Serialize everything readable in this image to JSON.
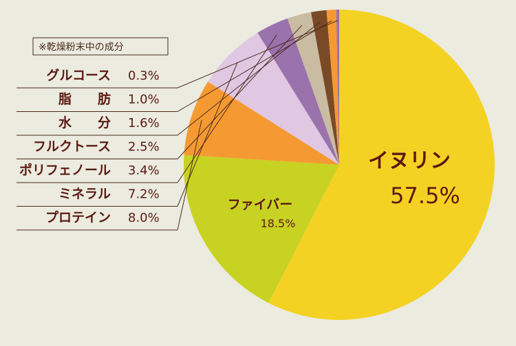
{
  "chart_data": {
    "type": "pie",
    "note": "※乾燥粉末中の成分",
    "slices": [
      {
        "name": "イヌリン",
        "label": "57.5%",
        "value": 57.5,
        "color": "#f4d224"
      },
      {
        "name": "ファイバー",
        "label": "18.5%",
        "value": 18.5,
        "color": "#c8d222"
      },
      {
        "name": "プロテイン",
        "label": "8.0%",
        "value": 8.0,
        "color": "#f59a32"
      },
      {
        "name": "ミネラル",
        "label": "7.2%",
        "value": 7.2,
        "color": "#e0c7e2"
      },
      {
        "name": "ポリフェノール",
        "label": "3.4%",
        "value": 3.4,
        "color": "#9a72ac"
      },
      {
        "name": "フルクトース",
        "label": "2.5%",
        "value": 2.5,
        "color": "#c9bca2"
      },
      {
        "name": "水　　分",
        "label": "1.6%",
        "value": 1.6,
        "color": "#7a4a26"
      },
      {
        "name": "脂　　肪",
        "label": "1.0%",
        "value": 1.0,
        "color": "#f59a32"
      },
      {
        "name": "グルコース",
        "label": "0.3%",
        "value": 0.3,
        "color": "#9a72ac"
      }
    ],
    "legend_order": [
      "グルコース",
      "脂　　肪",
      "水　　分",
      "フルクトース",
      "ポリフェノール",
      "ミネラル",
      "プロテイン"
    ]
  }
}
